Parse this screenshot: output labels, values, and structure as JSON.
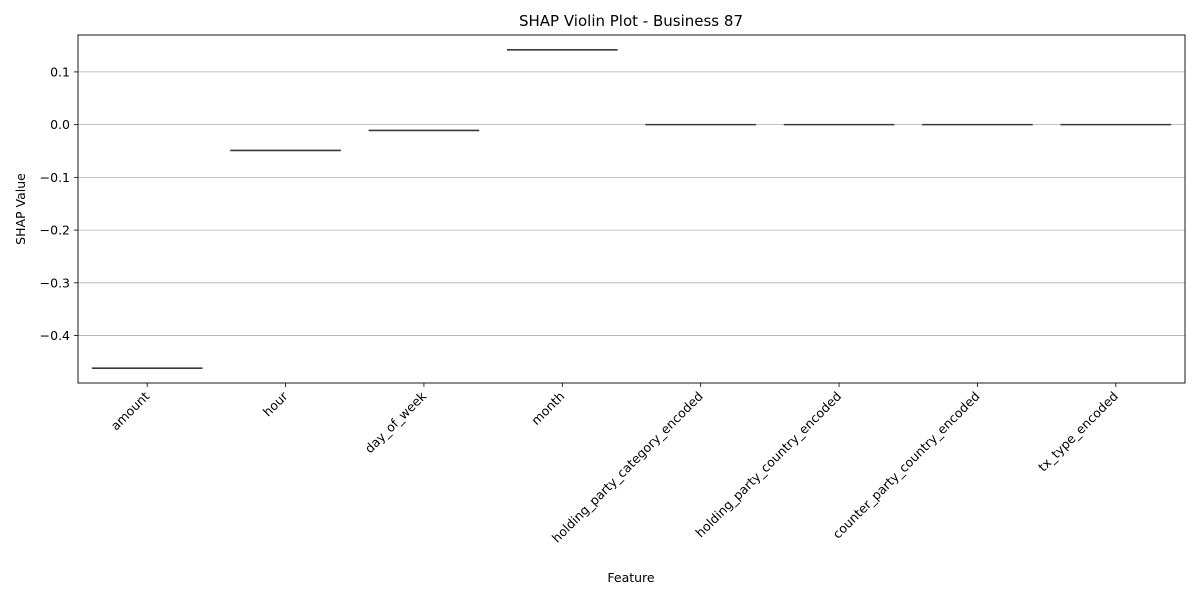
{
  "chart_data": {
    "type": "violin",
    "title": "SHAP Violin Plot - Business 87",
    "xlabel": "Feature",
    "ylabel": "SHAP Value",
    "categories": [
      "amount",
      "hour",
      "day_of_week",
      "month",
      "holding_party_category_encoded",
      "holding_party_country_encoded",
      "counter_party_country_encoded",
      "tx_type_encoded"
    ],
    "values": [
      -0.462,
      -0.049,
      -0.011,
      0.142,
      0.0,
      0.0,
      0.0,
      0.0
    ],
    "ylim": [
      -0.49,
      0.17
    ],
    "yticks": [
      0.1,
      0.0,
      -0.1,
      -0.2,
      -0.3,
      -0.4
    ],
    "ytick_labels": [
      "0.1",
      "0.0",
      "−0.1",
      "−0.2",
      "−0.3",
      "−0.4"
    ],
    "grid": "y-axis horizontal",
    "line_color": "#3a3a3a",
    "grid_color": "#b0b0b0"
  }
}
